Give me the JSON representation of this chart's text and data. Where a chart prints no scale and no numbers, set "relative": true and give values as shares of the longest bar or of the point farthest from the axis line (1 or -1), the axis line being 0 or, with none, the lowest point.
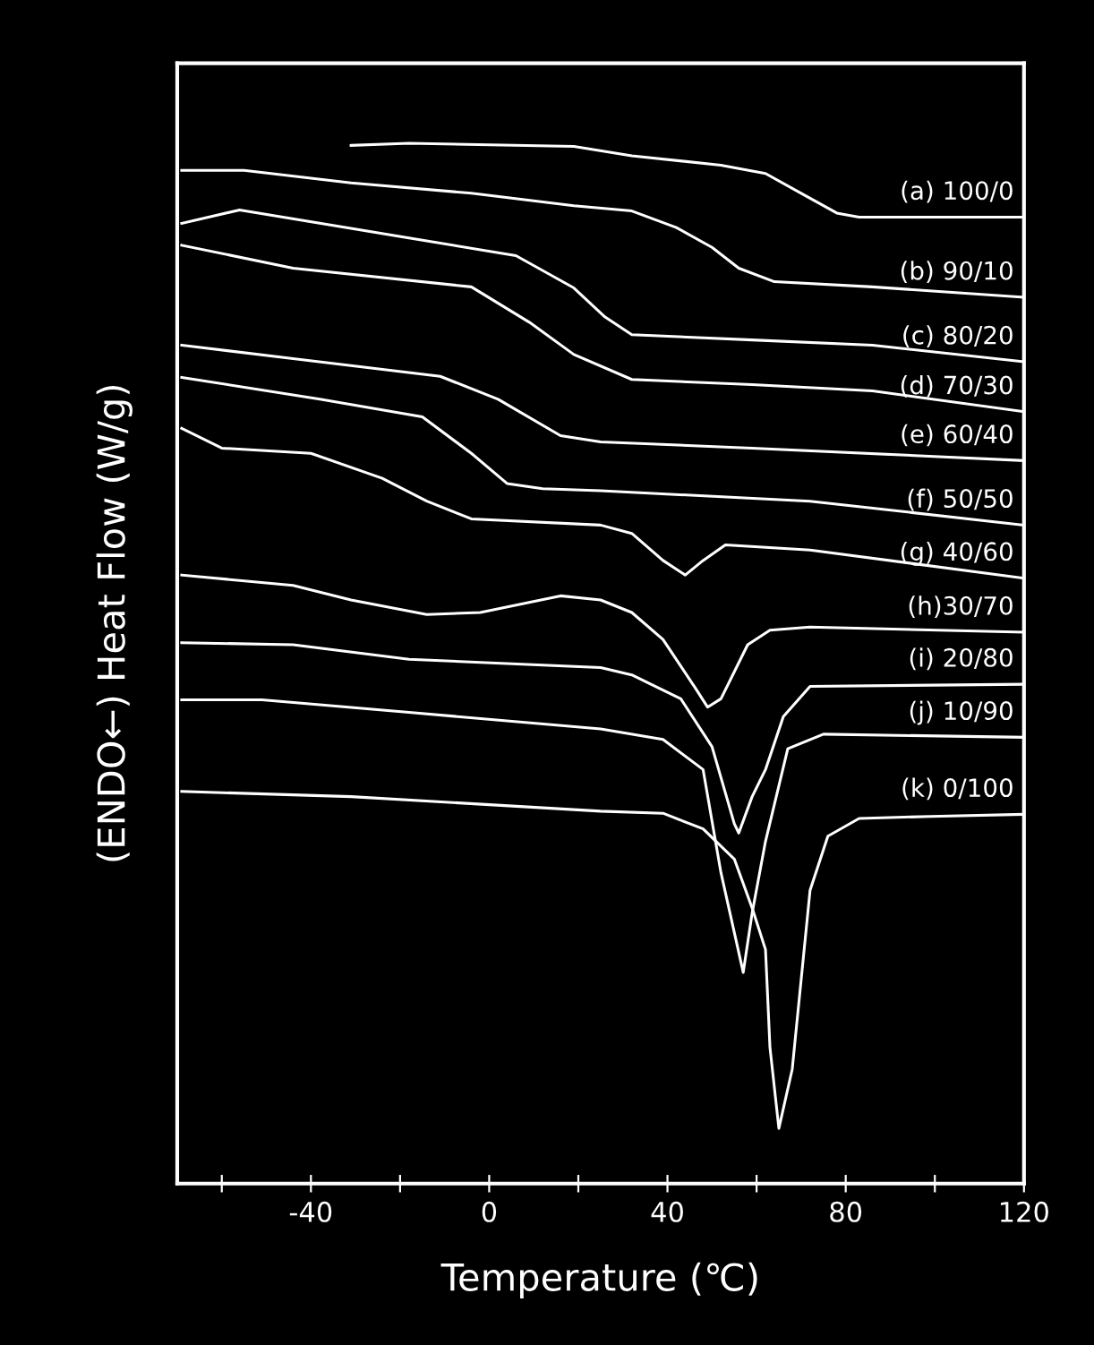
{
  "chart_data": {
    "type": "line",
    "relative": true,
    "xlabel": "Temperature (℃)",
    "ylabel": "(ENDO←) Heat Flow (W/g)",
    "xlim": [
      -70,
      120
    ],
    "xticks": [
      {
        "value": -60,
        "label": null
      },
      -40,
      {
        "value": -20,
        "label": null
      },
      0,
      {
        "value": 20,
        "label": null
      },
      40,
      {
        "value": 60,
        "label": null
      },
      80,
      {
        "value": 100,
        "label": null
      },
      120
    ],
    "tick_labels": "x",
    "grid": false,
    "marker": "none",
    "line_style": "solid",
    "series": [
      {
        "name": "(a) 100/0",
        "color": "#ffffff",
        "x": [
          -31,
          -18,
          19,
          32,
          52,
          62,
          70,
          78,
          83,
          120
        ],
        "values": [
          0.998,
          1.0,
          0.997,
          0.988,
          0.979,
          0.971,
          0.952,
          0.933,
          0.929,
          0.929
        ]
      },
      {
        "name": "(b) 90/10",
        "color": "#ffffff",
        "x": [
          -69,
          -55,
          -31,
          -4,
          19,
          32,
          42,
          50,
          56,
          64,
          86,
          120
        ],
        "values": [
          0.974,
          0.974,
          0.962,
          0.952,
          0.94,
          0.935,
          0.919,
          0.9,
          0.88,
          0.867,
          0.862,
          0.852
        ]
      },
      {
        "name": "(c) 80/20",
        "color": "#ffffff",
        "x": [
          -69,
          -56,
          -18,
          6,
          19,
          26,
          32,
          59,
          86,
          120
        ],
        "values": [
          0.923,
          0.936,
          0.909,
          0.892,
          0.861,
          0.833,
          0.816,
          0.811,
          0.806,
          0.79
        ]
      },
      {
        "name": "(d) 70/30",
        "color": "#ffffff",
        "x": [
          -69,
          -44,
          -4,
          9,
          19,
          32,
          59,
          86,
          120
        ],
        "values": [
          0.902,
          0.88,
          0.862,
          0.828,
          0.797,
          0.773,
          0.768,
          0.762,
          0.742
        ]
      },
      {
        "name": "(e) 60/40",
        "color": "#ffffff",
        "x": [
          -69,
          -44,
          -11,
          2,
          16,
          25,
          59,
          120
        ],
        "values": [
          0.806,
          0.793,
          0.776,
          0.754,
          0.719,
          0.713,
          0.707,
          0.695
        ]
      },
      {
        "name": "(f) 50/50",
        "color": "#ffffff",
        "x": [
          -69,
          -38,
          -15,
          -4,
          4,
          12,
          25,
          72,
          120
        ],
        "values": [
          0.775,
          0.754,
          0.737,
          0.702,
          0.673,
          0.668,
          0.666,
          0.656,
          0.633
        ]
      },
      {
        "name": "(g) 40/60",
        "color": "#ffffff",
        "x": [
          -69,
          -60,
          -40,
          -24,
          -14,
          -4,
          25,
          32,
          39,
          44,
          48,
          53,
          72,
          120
        ],
        "values": [
          0.726,
          0.707,
          0.702,
          0.678,
          0.656,
          0.639,
          0.633,
          0.625,
          0.599,
          0.585,
          0.599,
          0.614,
          0.609,
          0.582
        ]
      },
      {
        "name": "(h)30/70",
        "color": "#ffffff",
        "x": [
          -69,
          -44,
          -31,
          -14,
          -2,
          16,
          25,
          32,
          39,
          46,
          49,
          52,
          58,
          63,
          72,
          120
        ],
        "values": [
          0.585,
          0.575,
          0.561,
          0.547,
          0.549,
          0.565,
          0.561,
          0.549,
          0.523,
          0.478,
          0.458,
          0.466,
          0.518,
          0.532,
          0.535,
          0.53
        ]
      },
      {
        "name": "(i) 20/80",
        "color": "#ffffff",
        "x": [
          -69,
          -44,
          -18,
          -2,
          25,
          32,
          43,
          50,
          55,
          56,
          59,
          62,
          66,
          72,
          120
        ],
        "values": [
          0.52,
          0.518,
          0.504,
          0.501,
          0.496,
          0.489,
          0.466,
          0.42,
          0.346,
          0.337,
          0.372,
          0.398,
          0.449,
          0.478,
          0.48
        ]
      },
      {
        "name": "(j) 10/90",
        "color": "#ffffff",
        "x": [
          -69,
          -51,
          -18,
          25,
          39,
          48,
          52,
          57,
          59,
          62,
          67,
          75,
          120
        ],
        "values": [
          0.465,
          0.465,
          0.453,
          0.437,
          0.427,
          0.398,
          0.299,
          0.203,
          0.26,
          0.329,
          0.418,
          0.432,
          0.429
        ]
      },
      {
        "name": "(k) 0/100",
        "color": "#ffffff",
        "x": [
          -69,
          -31,
          25,
          39,
          48,
          55,
          59,
          62,
          63,
          65,
          68,
          72,
          76,
          83,
          99,
          120
        ],
        "values": [
          0.377,
          0.372,
          0.358,
          0.356,
          0.341,
          0.312,
          0.265,
          0.225,
          0.131,
          0.053,
          0.11,
          0.282,
          0.334,
          0.351,
          0.353,
          0.355
        ]
      }
    ]
  }
}
